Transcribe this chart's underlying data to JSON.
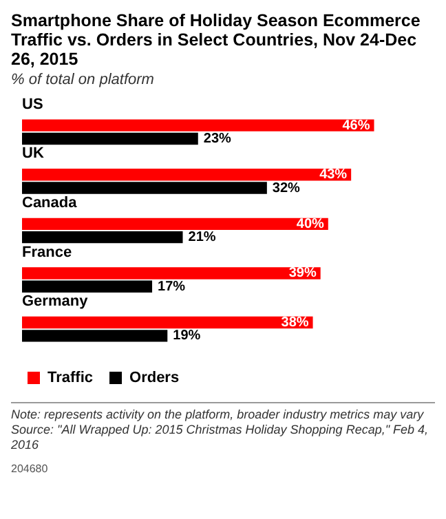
{
  "chart_data": {
    "type": "bar",
    "orientation": "horizontal",
    "title": "Smartphone Share of Holiday Season Ecommerce Traffic vs. Orders in Select Countries, Nov 24-Dec 26, 2015",
    "subtitle": "% of total on platform",
    "categories": [
      "US",
      "UK",
      "Canada",
      "France",
      "Germany"
    ],
    "series": [
      {
        "name": "Traffic",
        "color": "#ff0000",
        "values": [
          46,
          43,
          40,
          39,
          38
        ],
        "value_labels": [
          "46%",
          "43%",
          "40%",
          "39%",
          "38%"
        ]
      },
      {
        "name": "Orders",
        "color": "#000000",
        "values": [
          23,
          32,
          21,
          17,
          19
        ],
        "value_labels": [
          "23%",
          "32%",
          "21%",
          "17%",
          "19%"
        ]
      }
    ],
    "grid": false,
    "legend": "bottom left",
    "tick_labels": "y",
    "annotations": [
      "Note: represents activity on the platform, broader industry metrics may vary",
      "Source: \"All Wrapped Up: 2015 Christmas Holiday Shopping Recap,\" Feb 4, 2016",
      "204680"
    ]
  }
}
